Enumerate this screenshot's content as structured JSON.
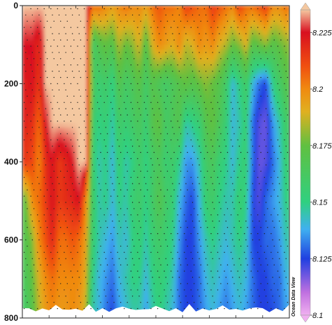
{
  "chart_data": {
    "type": "heatmap",
    "title": "",
    "xlabel": "",
    "ylabel": "",
    "y_axis": {
      "ticks": [
        0,
        200,
        400,
        600,
        800
      ],
      "tick_labels": [
        "0",
        "200",
        "400",
        "600",
        "800"
      ],
      "ylim": [
        0,
        800
      ],
      "inverted": true
    },
    "colorbar": {
      "vmin": 8.1,
      "vmax": 8.235,
      "ticks": [
        8.1,
        8.125,
        8.15,
        8.175,
        8.2,
        8.225
      ],
      "tick_labels": [
        "8.1",
        "8.125",
        "8.15",
        "8.175",
        "8.2",
        "8.225"
      ],
      "stops": [
        {
          "value": 8.1,
          "color": "#f0b0f0"
        },
        {
          "value": 8.11,
          "color": "#c070e0"
        },
        {
          "value": 8.125,
          "color": "#2040e0"
        },
        {
          "value": 8.138,
          "color": "#40b0f0"
        },
        {
          "value": 8.15,
          "color": "#30d080"
        },
        {
          "value": 8.175,
          "color": "#60c040"
        },
        {
          "value": 8.19,
          "color": "#e0b020"
        },
        {
          "value": 8.2,
          "color": "#f08a10"
        },
        {
          "value": 8.21,
          "color": "#f05010"
        },
        {
          "value": 8.225,
          "color": "#d81020"
        },
        {
          "value": 8.235,
          "color": "#f4c8a0"
        }
      ]
    },
    "columns": 40,
    "depth_levels": [
      0,
      100,
      200,
      300,
      400,
      500,
      600,
      700,
      800
    ],
    "values_by_depth": [
      [
        8.235,
        8.235,
        8.235,
        8.235,
        8.235,
        8.235,
        8.235,
        8.235,
        8.235,
        8.235,
        8.205,
        8.205,
        8.2,
        8.195,
        8.2,
        8.205,
        8.2,
        8.2,
        8.195,
        8.205,
        8.21,
        8.205,
        8.205,
        8.2,
        8.215,
        8.21,
        8.205,
        8.205,
        8.215,
        8.21,
        8.205,
        8.2,
        8.215,
        8.205,
        8.205,
        8.21,
        8.215,
        8.2,
        8.2,
        8.205
      ],
      [
        8.225,
        8.225,
        8.218,
        8.235,
        8.235,
        8.235,
        8.235,
        8.235,
        8.235,
        8.235,
        8.16,
        8.17,
        8.175,
        8.17,
        8.185,
        8.175,
        8.18,
        8.19,
        8.17,
        8.19,
        8.2,
        8.195,
        8.19,
        8.2,
        8.185,
        8.19,
        8.2,
        8.195,
        8.2,
        8.19,
        8.185,
        8.175,
        8.18,
        8.19,
        8.17,
        8.175,
        8.18,
        8.17,
        8.175,
        8.18
      ],
      [
        8.222,
        8.225,
        8.215,
        8.235,
        8.235,
        8.235,
        8.235,
        8.235,
        8.235,
        8.235,
        8.165,
        8.155,
        8.16,
        8.15,
        8.17,
        8.16,
        8.165,
        8.172,
        8.16,
        8.17,
        8.165,
        8.16,
        8.165,
        8.17,
        8.175,
        8.17,
        8.175,
        8.18,
        8.175,
        8.17,
        8.16,
        8.14,
        8.15,
        8.16,
        8.14,
        8.13,
        8.125,
        8.15,
        8.16,
        8.17
      ],
      [
        8.22,
        8.218,
        8.205,
        8.225,
        8.235,
        8.235,
        8.235,
        8.235,
        8.235,
        8.235,
        8.16,
        8.15,
        8.155,
        8.145,
        8.16,
        8.155,
        8.16,
        8.165,
        8.155,
        8.17,
        8.175,
        8.16,
        8.165,
        8.17,
        8.145,
        8.15,
        8.155,
        8.17,
        8.175,
        8.165,
        8.155,
        8.14,
        8.145,
        8.155,
        8.13,
        8.12,
        8.118,
        8.135,
        8.145,
        8.16
      ],
      [
        8.215,
        8.212,
        8.2,
        8.218,
        8.225,
        8.215,
        8.22,
        8.225,
        8.235,
        8.235,
        8.155,
        8.145,
        8.15,
        8.14,
        8.155,
        8.145,
        8.15,
        8.16,
        8.15,
        8.16,
        8.165,
        8.155,
        8.16,
        8.15,
        8.135,
        8.135,
        8.145,
        8.16,
        8.165,
        8.155,
        8.15,
        8.14,
        8.15,
        8.155,
        8.13,
        8.118,
        8.12,
        8.13,
        8.14,
        8.155
      ],
      [
        8.175,
        8.2,
        8.205,
        8.215,
        8.225,
        8.215,
        8.218,
        8.22,
        8.225,
        8.2,
        8.16,
        8.145,
        8.15,
        8.14,
        8.15,
        8.145,
        8.155,
        8.16,
        8.15,
        8.16,
        8.17,
        8.16,
        8.155,
        8.14,
        8.13,
        8.125,
        8.14,
        8.155,
        8.16,
        8.15,
        8.145,
        8.145,
        8.155,
        8.15,
        8.125,
        8.12,
        8.13,
        8.135,
        8.14,
        8.15
      ],
      [
        8.17,
        8.18,
        8.2,
        8.21,
        8.22,
        8.205,
        8.205,
        8.21,
        8.205,
        8.195,
        8.155,
        8.145,
        8.14,
        8.135,
        8.145,
        8.14,
        8.15,
        8.155,
        8.145,
        8.155,
        8.16,
        8.155,
        8.15,
        8.135,
        8.125,
        8.125,
        8.135,
        8.145,
        8.15,
        8.145,
        8.14,
        8.145,
        8.15,
        8.145,
        8.125,
        8.125,
        8.13,
        8.13,
        8.135,
        8.145
      ],
      [
        8.165,
        8.175,
        8.19,
        8.2,
        8.205,
        8.2,
        8.2,
        8.2,
        8.2,
        8.19,
        8.15,
        8.14,
        8.135,
        8.13,
        8.14,
        8.145,
        8.15,
        8.15,
        8.14,
        8.15,
        8.155,
        8.15,
        8.145,
        8.13,
        8.125,
        8.125,
        8.13,
        8.14,
        8.145,
        8.14,
        8.135,
        8.14,
        8.145,
        8.14,
        8.13,
        8.125,
        8.125,
        8.13,
        8.13,
        8.14
      ],
      [
        8.16,
        8.17,
        8.185,
        8.195,
        8.2,
        8.195,
        8.195,
        8.2,
        8.195,
        8.185,
        8.145,
        8.14,
        8.13,
        8.125,
        8.135,
        8.14,
        8.145,
        8.145,
        8.135,
        8.145,
        8.15,
        8.145,
        8.14,
        8.13,
        8.125,
        8.125,
        8.13,
        8.135,
        8.14,
        8.135,
        8.13,
        8.135,
        8.14,
        8.135,
        8.13,
        8.125,
        8.125,
        8.125,
        8.13,
        8.135
      ]
    ]
  }
}
